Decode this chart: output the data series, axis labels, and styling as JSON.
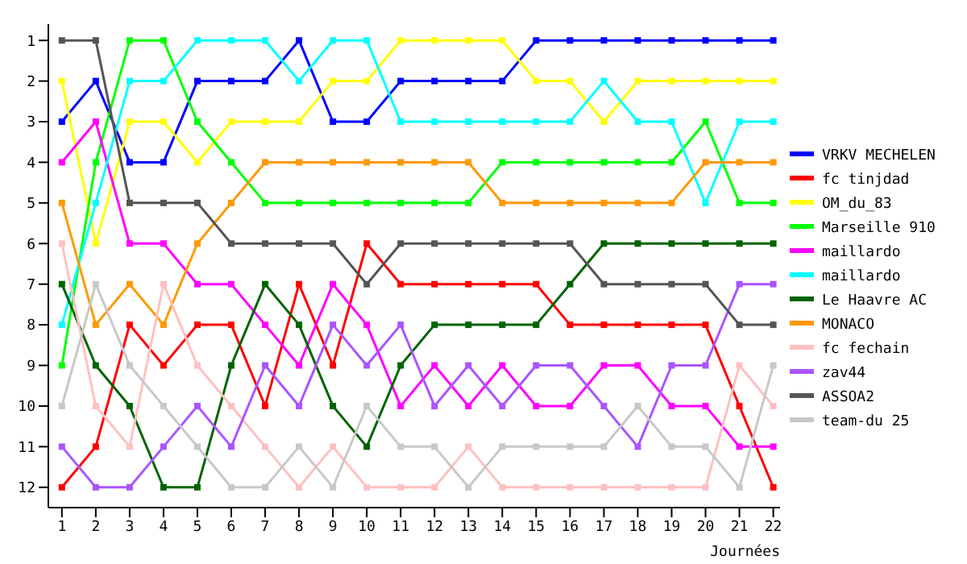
{
  "chart_data": {
    "type": "line",
    "xlabel": "Journées",
    "x": [
      1,
      2,
      3,
      4,
      5,
      6,
      7,
      8,
      9,
      10,
      11,
      12,
      13,
      14,
      15,
      16,
      17,
      18,
      19,
      20,
      21,
      22
    ],
    "xlim": [
      0.6,
      22.2
    ],
    "xticks": [
      1,
      2,
      3,
      4,
      5,
      6,
      7,
      8,
      9,
      10,
      11,
      12,
      13,
      14,
      15,
      16,
      17,
      18,
      19,
      20,
      21,
      22
    ],
    "ylim": [
      12.5,
      0.6
    ],
    "yticks": [
      1,
      2,
      3,
      4,
      5,
      6,
      7,
      8,
      9,
      10,
      11,
      12
    ],
    "grid": false,
    "legend": "right",
    "marker": "square",
    "line_style": "solid",
    "series": [
      {
        "name": "VRKV MECHELEN",
        "color": "#0000ff",
        "values": [
          3,
          2,
          4,
          4,
          2,
          2,
          2,
          1,
          3,
          3,
          2,
          2,
          2,
          2,
          1,
          1,
          1,
          1,
          1,
          1,
          1,
          1
        ]
      },
      {
        "name": "fc tinjdad",
        "color": "#ff0000",
        "values": [
          12,
          11,
          8,
          9,
          8,
          8,
          10,
          7,
          9,
          6,
          7,
          7,
          7,
          7,
          7,
          8,
          8,
          8,
          8,
          8,
          10,
          12
        ]
      },
      {
        "name": "OM_du_83",
        "color": "#ffff00",
        "values": [
          2,
          6,
          3,
          3,
          4,
          3,
          3,
          3,
          2,
          2,
          1,
          1,
          1,
          1,
          2,
          2,
          3,
          2,
          2,
          2,
          2,
          2
        ]
      },
      {
        "name": "Marseille 910",
        "color": "#00ff00",
        "values": [
          9,
          4,
          1,
          1,
          3,
          4,
          5,
          5,
          5,
          5,
          5,
          5,
          5,
          4,
          4,
          4,
          4,
          4,
          4,
          3,
          5,
          5
        ]
      },
      {
        "name": "maillardo",
        "color": "#ff00ff",
        "values": [
          4,
          3,
          6,
          6,
          7,
          7,
          8,
          9,
          7,
          8,
          10,
          9,
          10,
          9,
          10,
          10,
          9,
          9,
          10,
          10,
          11,
          11
        ]
      },
      {
        "name": "maillardo",
        "color": "#00ffff",
        "values": [
          8,
          5,
          2,
          2,
          1,
          1,
          1,
          2,
          1,
          1,
          3,
          3,
          3,
          3,
          3,
          3,
          2,
          3,
          3,
          5,
          3,
          3
        ]
      },
      {
        "name": "Le Haavre AC",
        "color": "#006400",
        "values": [
          7,
          9,
          10,
          12,
          12,
          9,
          7,
          8,
          10,
          11,
          9,
          8,
          8,
          8,
          8,
          7,
          6,
          6,
          6,
          6,
          6,
          6
        ]
      },
      {
        "name": "MONACO",
        "color": "#ff9900",
        "values": [
          5,
          8,
          7,
          8,
          6,
          5,
          4,
          4,
          4,
          4,
          4,
          4,
          4,
          5,
          5,
          5,
          5,
          5,
          5,
          4,
          4,
          4
        ]
      },
      {
        "name": "fc fechain",
        "color": "#ffc0c0",
        "values": [
          6,
          10,
          11,
          7,
          9,
          10,
          11,
          12,
          11,
          12,
          12,
          12,
          11,
          12,
          12,
          12,
          12,
          12,
          12,
          12,
          9,
          10
        ]
      },
      {
        "name": "zav44",
        "color": "#aa55ff",
        "values": [
          11,
          12,
          12,
          11,
          10,
          11,
          9,
          10,
          8,
          9,
          8,
          10,
          9,
          10,
          9,
          9,
          10,
          11,
          9,
          9,
          7,
          7
        ]
      },
      {
        "name": "ASSOA2",
        "color": "#555555",
        "values": [
          1,
          1,
          5,
          5,
          5,
          6,
          6,
          6,
          6,
          7,
          6,
          6,
          6,
          6,
          6,
          6,
          7,
          7,
          7,
          7,
          8,
          8
        ]
      },
      {
        "name": "team-du 25",
        "color": "#c8c8c8",
        "values": [
          10,
          7,
          9,
          10,
          11,
          12,
          12,
          11,
          12,
          10,
          11,
          11,
          12,
          11,
          11,
          11,
          11,
          10,
          11,
          11,
          12,
          9
        ]
      }
    ]
  }
}
